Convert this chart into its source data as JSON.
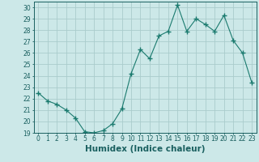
{
  "x": [
    0,
    1,
    2,
    3,
    4,
    5,
    6,
    7,
    8,
    9,
    10,
    11,
    12,
    13,
    14,
    15,
    16,
    17,
    18,
    19,
    20,
    21,
    22,
    23
  ],
  "y": [
    22.5,
    21.8,
    21.5,
    21.0,
    20.3,
    19.1,
    19.0,
    19.2,
    19.8,
    21.1,
    24.2,
    26.3,
    25.5,
    27.5,
    27.9,
    30.2,
    27.9,
    29.0,
    28.5,
    27.9,
    29.3,
    27.1,
    26.0,
    23.4
  ],
  "line_color": "#1a7a6e",
  "marker": "+",
  "marker_size": 4,
  "bg_color": "#cce8e8",
  "grid_color": "#aacccc",
  "xlabel": "Humidex (Indice chaleur)",
  "xlim": [
    -0.5,
    23.5
  ],
  "ylim": [
    19,
    30.5
  ],
  "yticks": [
    19,
    20,
    21,
    22,
    23,
    24,
    25,
    26,
    27,
    28,
    29,
    30
  ],
  "xticks": [
    0,
    1,
    2,
    3,
    4,
    5,
    6,
    7,
    8,
    9,
    10,
    11,
    12,
    13,
    14,
    15,
    16,
    17,
    18,
    19,
    20,
    21,
    22,
    23
  ],
  "tick_label_size": 5.5,
  "xlabel_size": 7.5,
  "axis_color": "#1a6060",
  "line_width": 0.8,
  "marker_color": "#1a7a6e"
}
